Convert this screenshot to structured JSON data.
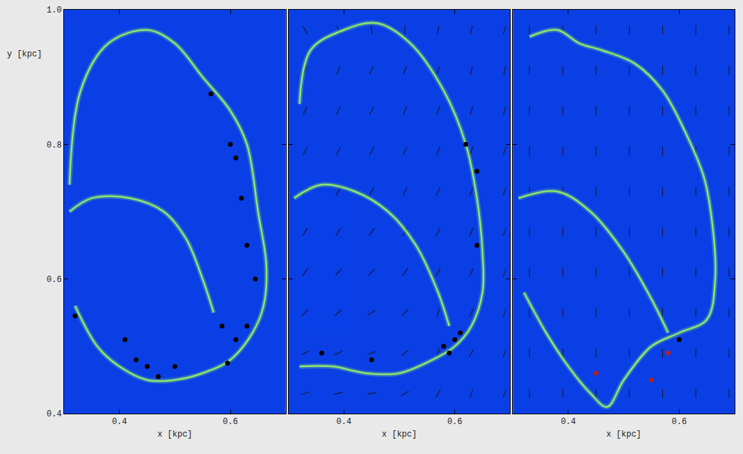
{
  "chart_data": [
    {
      "type": "line",
      "xlabel": "x [kpc]",
      "ylabel": "y [kpc]",
      "xlim": [
        0.3,
        0.7
      ],
      "ylim": [
        0.4,
        1.0
      ],
      "xticks": [
        0.4,
        0.6
      ],
      "yticks": [
        0.4,
        0.6,
        0.8,
        {
          "value": 1.0,
          "label": "1.0"
        }
      ],
      "grid": false,
      "series": [
        {
          "type": "line",
          "color": "#8ee86c",
          "x": [
            0.31,
            0.33,
            0.38,
            0.45,
            0.5,
            0.55,
            0.6,
            0.63,
            0.65,
            0.665,
            0.66,
            0.64,
            0.6,
            0.55,
            0.5,
            0.45,
            0.4,
            0.36,
            0.32
          ],
          "y": [
            0.74,
            0.88,
            0.95,
            0.97,
            0.95,
            0.9,
            0.85,
            0.8,
            0.7,
            0.62,
            0.56,
            0.52,
            0.48,
            0.46,
            0.45,
            0.45,
            0.47,
            0.5,
            0.56
          ]
        },
        {
          "type": "line",
          "color": "#8ee86c",
          "x": [
            0.31,
            0.35,
            0.42,
            0.48,
            0.52,
            0.55,
            0.57
          ],
          "y": [
            0.7,
            0.72,
            0.72,
            0.7,
            0.66,
            0.6,
            0.55
          ]
        },
        {
          "type": "scatter",
          "color": "#000000",
          "marker": "circle",
          "x": [
            0.585,
            0.61,
            0.595,
            0.43,
            0.41,
            0.32,
            0.63,
            0.645,
            0.63,
            0.62,
            0.61,
            0.6,
            0.565,
            0.45,
            0.5,
            0.47
          ],
          "y": [
            0.53,
            0.51,
            0.475,
            0.48,
            0.51,
            0.545,
            0.53,
            0.6,
            0.65,
            0.72,
            0.78,
            0.8,
            0.875,
            0.47,
            0.47,
            0.455
          ]
        }
      ]
    },
    {
      "type": "line",
      "xlabel": "x [kpc]",
      "tick_labels": "x",
      "xlim": [
        0.3,
        0.7
      ],
      "ylim": [
        0.4,
        1.0
      ],
      "xticks": [
        0.4,
        0.6
      ],
      "yticks": [
        0.4,
        0.6,
        0.8,
        {
          "value": 1.0,
          "label": "1.0"
        }
      ],
      "grid": false,
      "series": [
        {
          "type": "line",
          "color": "#8ee86c",
          "x": [
            0.32,
            0.34,
            0.4,
            0.46,
            0.52,
            0.58,
            0.62,
            0.64,
            0.65,
            0.65,
            0.63,
            0.6,
            0.56,
            0.5,
            0.44,
            0.38,
            0.32
          ],
          "y": [
            0.86,
            0.94,
            0.97,
            0.98,
            0.95,
            0.88,
            0.8,
            0.72,
            0.64,
            0.58,
            0.53,
            0.5,
            0.48,
            0.46,
            0.46,
            0.47,
            0.47
          ]
        },
        {
          "type": "line",
          "color": "#8ee86c",
          "x": [
            0.31,
            0.36,
            0.42,
            0.48,
            0.53,
            0.57,
            0.59
          ],
          "y": [
            0.72,
            0.74,
            0.73,
            0.7,
            0.65,
            0.58,
            0.53
          ]
        },
        {
          "type": "scatter",
          "color": "#000000",
          "marker": "circle",
          "x": [
            0.6,
            0.61,
            0.59,
            0.58,
            0.45,
            0.64,
            0.64,
            0.62,
            0.36
          ],
          "y": [
            0.51,
            0.52,
            0.49,
            0.5,
            0.48,
            0.65,
            0.76,
            0.8,
            0.49
          ]
        }
      ],
      "field": {
        "x": [
          0.33,
          0.39,
          0.45,
          0.51,
          0.57,
          0.63,
          0.69
        ],
        "y": [
          0.43,
          0.49,
          0.55,
          0.61,
          0.67,
          0.73,
          0.79,
          0.85,
          0.91,
          0.97
        ],
        "angle": [
          [
            20,
            15,
            10,
            30,
            60,
            70,
            70
          ],
          [
            30,
            25,
            20,
            40,
            80,
            60,
            70
          ],
          [
            45,
            40,
            35,
            50,
            70,
            65,
            70
          ],
          [
            55,
            50,
            45,
            55,
            60,
            65,
            70
          ],
          [
            60,
            58,
            55,
            60,
            62,
            65,
            70
          ],
          [
            60,
            60,
            60,
            62,
            65,
            68,
            72
          ],
          [
            62,
            62,
            62,
            64,
            66,
            68,
            72
          ],
          [
            64,
            64,
            64,
            66,
            68,
            70,
            75
          ],
          [
            66,
            66,
            66,
            68,
            70,
            75,
            80
          ],
          [
            120,
            110,
            100,
            90,
            80,
            75,
            70
          ]
        ]
      }
    },
    {
      "type": "line",
      "xlabel": "x [kpc]",
      "tick_labels": "x",
      "xlim": [
        0.3,
        0.7
      ],
      "ylim": [
        0.4,
        1.0
      ],
      "xticks": [
        0.4,
        0.6
      ],
      "yticks": [
        0.4,
        0.6,
        0.8,
        {
          "value": 1.0,
          "label": "1.0"
        }
      ],
      "grid": false,
      "series": [
        {
          "type": "line",
          "color": "#8ee86c",
          "x": [
            0.33,
            0.38,
            0.42,
            0.46,
            0.52,
            0.57,
            0.61,
            0.645,
            0.66,
            0.665,
            0.65,
            0.6,
            0.55,
            0.5,
            0.47,
            0.44,
            0.4,
            0.36,
            0.32
          ],
          "y": [
            0.96,
            0.97,
            0.95,
            0.94,
            0.92,
            0.88,
            0.82,
            0.75,
            0.68,
            0.6,
            0.54,
            0.52,
            0.5,
            0.45,
            0.41,
            0.43,
            0.47,
            0.52,
            0.58
          ]
        },
        {
          "type": "line",
          "color": "#8ee86c",
          "x": [
            0.31,
            0.38,
            0.44,
            0.5,
            0.55,
            0.58
          ],
          "y": [
            0.72,
            0.73,
            0.7,
            0.64,
            0.57,
            0.52
          ]
        },
        {
          "type": "scatter",
          "color": "#000000",
          "marker": "circle",
          "x": [
            0.6
          ],
          "y": [
            0.51
          ]
        },
        {
          "type": "scatter",
          "color": "#b22222",
          "marker": "circle",
          "x": [
            0.45,
            0.58,
            0.55
          ],
          "y": [
            0.46,
            0.49,
            0.45
          ]
        }
      ],
      "field": {
        "x": [
          0.33,
          0.39,
          0.45,
          0.51,
          0.57,
          0.63,
          0.69
        ],
        "y": [
          0.43,
          0.49,
          0.55,
          0.61,
          0.67,
          0.73,
          0.79,
          0.85,
          0.91,
          0.97
        ],
        "angle": [
          [
            90,
            90,
            90,
            90,
            90,
            90,
            90
          ],
          [
            90,
            90,
            90,
            90,
            90,
            90,
            90
          ],
          [
            90,
            90,
            90,
            90,
            90,
            90,
            90
          ],
          [
            90,
            90,
            90,
            90,
            90,
            90,
            90
          ],
          [
            90,
            90,
            90,
            90,
            90,
            90,
            90
          ],
          [
            90,
            90,
            90,
            90,
            90,
            90,
            90
          ],
          [
            90,
            90,
            90,
            90,
            90,
            90,
            90
          ],
          [
            90,
            90,
            90,
            90,
            90,
            90,
            90
          ],
          [
            90,
            90,
            90,
            90,
            90,
            90,
            90
          ],
          [
            90,
            90,
            90,
            90,
            90,
            90,
            90
          ]
        ]
      }
    }
  ]
}
